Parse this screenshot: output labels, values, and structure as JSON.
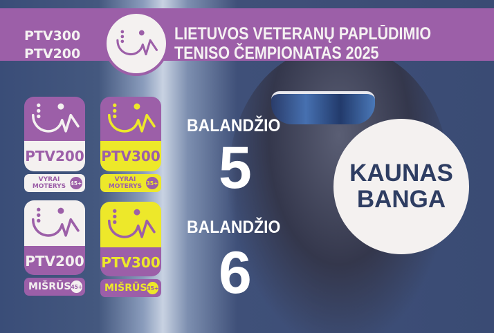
{
  "header": {
    "editions": [
      "PTV300",
      "PTV200"
    ],
    "title_line1": "LIETUVOS VETERANŲ PAPLŪDIMIO",
    "title_line2": "TENISO ČEMPIONATAS 2025",
    "logo_icon": "ptv-smile-logo"
  },
  "categories": [
    {
      "name": "PTV200",
      "label_lines": [
        "VYRAI",
        "MOTERYS"
      ],
      "age": "45+",
      "top_color": "#9c5fa8",
      "bottom_color": "#f4f1f0",
      "text_color": "#9c5fa8"
    },
    {
      "name": "PTV300",
      "label_lines": [
        "VYRAI",
        "MOTERYS"
      ],
      "age": "35+",
      "top_color": "#9c5fa8",
      "bottom_color": "#ede82a",
      "text_color": "#9c5fa8"
    },
    {
      "name": "PTV200",
      "label": "MIŠRŪS",
      "age": "45+",
      "top_color": "#f4f1f0",
      "bottom_color": "#9c5fa8",
      "text_color": "#f4f1f0"
    },
    {
      "name": "PTV300",
      "label": "MIŠRŪS",
      "age": "35+",
      "top_color": "#ede82a",
      "bottom_color": "#9c5fa8",
      "text_color": "#ede82a"
    }
  ],
  "dates": [
    {
      "month": "BALANDŽIO",
      "day": "5"
    },
    {
      "month": "BALANDŽIO",
      "day": "6"
    }
  ],
  "venue": {
    "line1": "KAUNAS",
    "line2": "BANGA"
  },
  "colors": {
    "purple": "#9c5fa8",
    "yellow": "#ede82a",
    "navy": "#3a4b74",
    "white": "#f4f1f0"
  }
}
